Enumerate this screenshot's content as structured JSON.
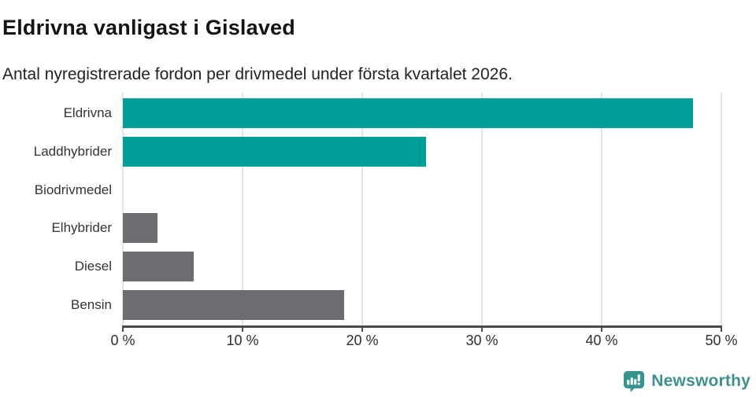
{
  "header": {
    "title": "Eldrivna vanligast i Gislaved",
    "subtitle": "Antal nyregistrerade fordon per drivmedel under första kvartalet 2026."
  },
  "chart_data": {
    "type": "bar",
    "orientation": "horizontal",
    "title": "Eldrivna vanligast i Gislaved",
    "subtitle": "Antal nyregistrerade fordon per drivmedel under första kvartalet 2026.",
    "categories": [
      "Eldrivna",
      "Laddhybrider",
      "Biodrivmedel",
      "Elhybrider",
      "Diesel",
      "Bensin"
    ],
    "values": [
      47.6,
      25.3,
      0,
      2.9,
      5.9,
      18.5
    ],
    "bar_colors": [
      "#00a099",
      "#00a099",
      "#6c6c71",
      "#6c6c71",
      "#6c6c71",
      "#6c6c71"
    ],
    "xlabel": "",
    "ylabel": "",
    "xlim": [
      0,
      50
    ],
    "xticks": [
      0,
      10,
      20,
      30,
      40,
      50
    ],
    "xtick_labels": [
      "0 %",
      "10 %",
      "20 %",
      "30 %",
      "40 %",
      "50 %"
    ],
    "grid": true,
    "legend": "none"
  },
  "footer": {
    "brand": "Newsworthy"
  },
  "colors": {
    "accent_teal": "#00a099",
    "bar_gray": "#6c6c71",
    "logo_teal": "#35948f",
    "gridline": "#e4e4e4",
    "axis_line": "#4a4a4d"
  }
}
